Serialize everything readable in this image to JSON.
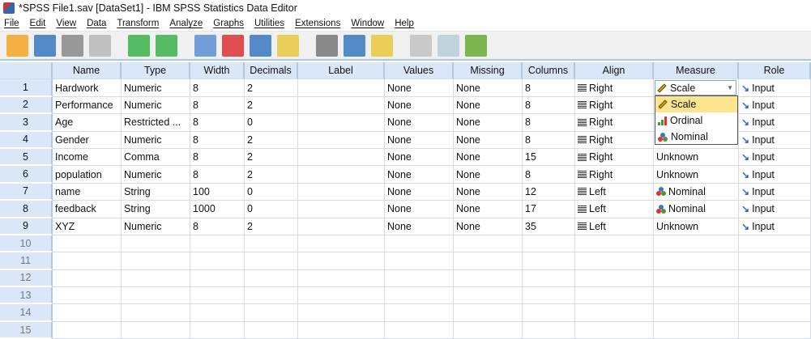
{
  "window": {
    "title": "*SPSS File1.sav [DataSet1] - IBM SPSS Statistics Data Editor"
  },
  "menu": [
    "File",
    "Edit",
    "View",
    "Data",
    "Transform",
    "Analyze",
    "Graphs",
    "Utilities",
    "Extensions",
    "Window",
    "Help"
  ],
  "toolbar": [
    "open-icon",
    "save-icon",
    "print-icon",
    "dialog-recall-icon",
    "undo-icon",
    "redo-icon",
    "goto-case-icon",
    "goto-variable-icon",
    "variables-icon",
    "descriptive-icon",
    "find-icon",
    "split-file-icon",
    "weight-cases-icon",
    "value-labels-icon",
    "use-sets-icon",
    "spell-check-icon"
  ],
  "columns": [
    "Name",
    "Type",
    "Width",
    "Decimals",
    "Label",
    "Values",
    "Missing",
    "Columns",
    "Align",
    "Measure",
    "Role"
  ],
  "rows": [
    {
      "n": "1",
      "cells": [
        "Hardwork",
        "Numeric",
        "8",
        "2",
        "",
        "None",
        "None",
        "8",
        "Right",
        "Scale",
        "Input"
      ]
    },
    {
      "n": "2",
      "cells": [
        "Performance",
        "Numeric",
        "8",
        "2",
        "",
        "None",
        "None",
        "8",
        "Right",
        "",
        "Input"
      ]
    },
    {
      "n": "3",
      "cells": [
        "Age",
        "Restricted ...",
        "8",
        "0",
        "",
        "None",
        "None",
        "8",
        "Right",
        "",
        "Input"
      ]
    },
    {
      "n": "4",
      "cells": [
        "Gender",
        "Numeric",
        "8",
        "2",
        "",
        "None",
        "None",
        "8",
        "Right",
        "",
        "Input"
      ]
    },
    {
      "n": "5",
      "cells": [
        "Income",
        "Comma",
        "8",
        "2",
        "",
        "None",
        "None",
        "15",
        "Right",
        "Unknown",
        "Input"
      ]
    },
    {
      "n": "6",
      "cells": [
        "population",
        "Numeric",
        "8",
        "2",
        "",
        "None",
        "None",
        "8",
        "Right",
        "Unknown",
        "Input"
      ]
    },
    {
      "n": "7",
      "cells": [
        "name",
        "String",
        "100",
        "0",
        "",
        "None",
        "None",
        "12",
        "Left",
        "Nominal",
        "Input"
      ]
    },
    {
      "n": "8",
      "cells": [
        "feedback",
        "String",
        "1000",
        "0",
        "",
        "None",
        "None",
        "17",
        "Left",
        "Nominal",
        "Input"
      ]
    },
    {
      "n": "9",
      "cells": [
        "XYZ",
        "Numeric",
        "8",
        "2",
        "",
        "None",
        "None",
        "35",
        "Left",
        "Unknown",
        "Input"
      ]
    },
    {
      "n": "10",
      "cells": []
    },
    {
      "n": "11",
      "cells": []
    },
    {
      "n": "12",
      "cells": []
    },
    {
      "n": "13",
      "cells": []
    },
    {
      "n": "14",
      "cells": []
    },
    {
      "n": "15",
      "cells": []
    }
  ],
  "measure_dropdown": {
    "options": [
      "Scale",
      "Ordinal",
      "Nominal"
    ],
    "highlighted": "Scale"
  }
}
